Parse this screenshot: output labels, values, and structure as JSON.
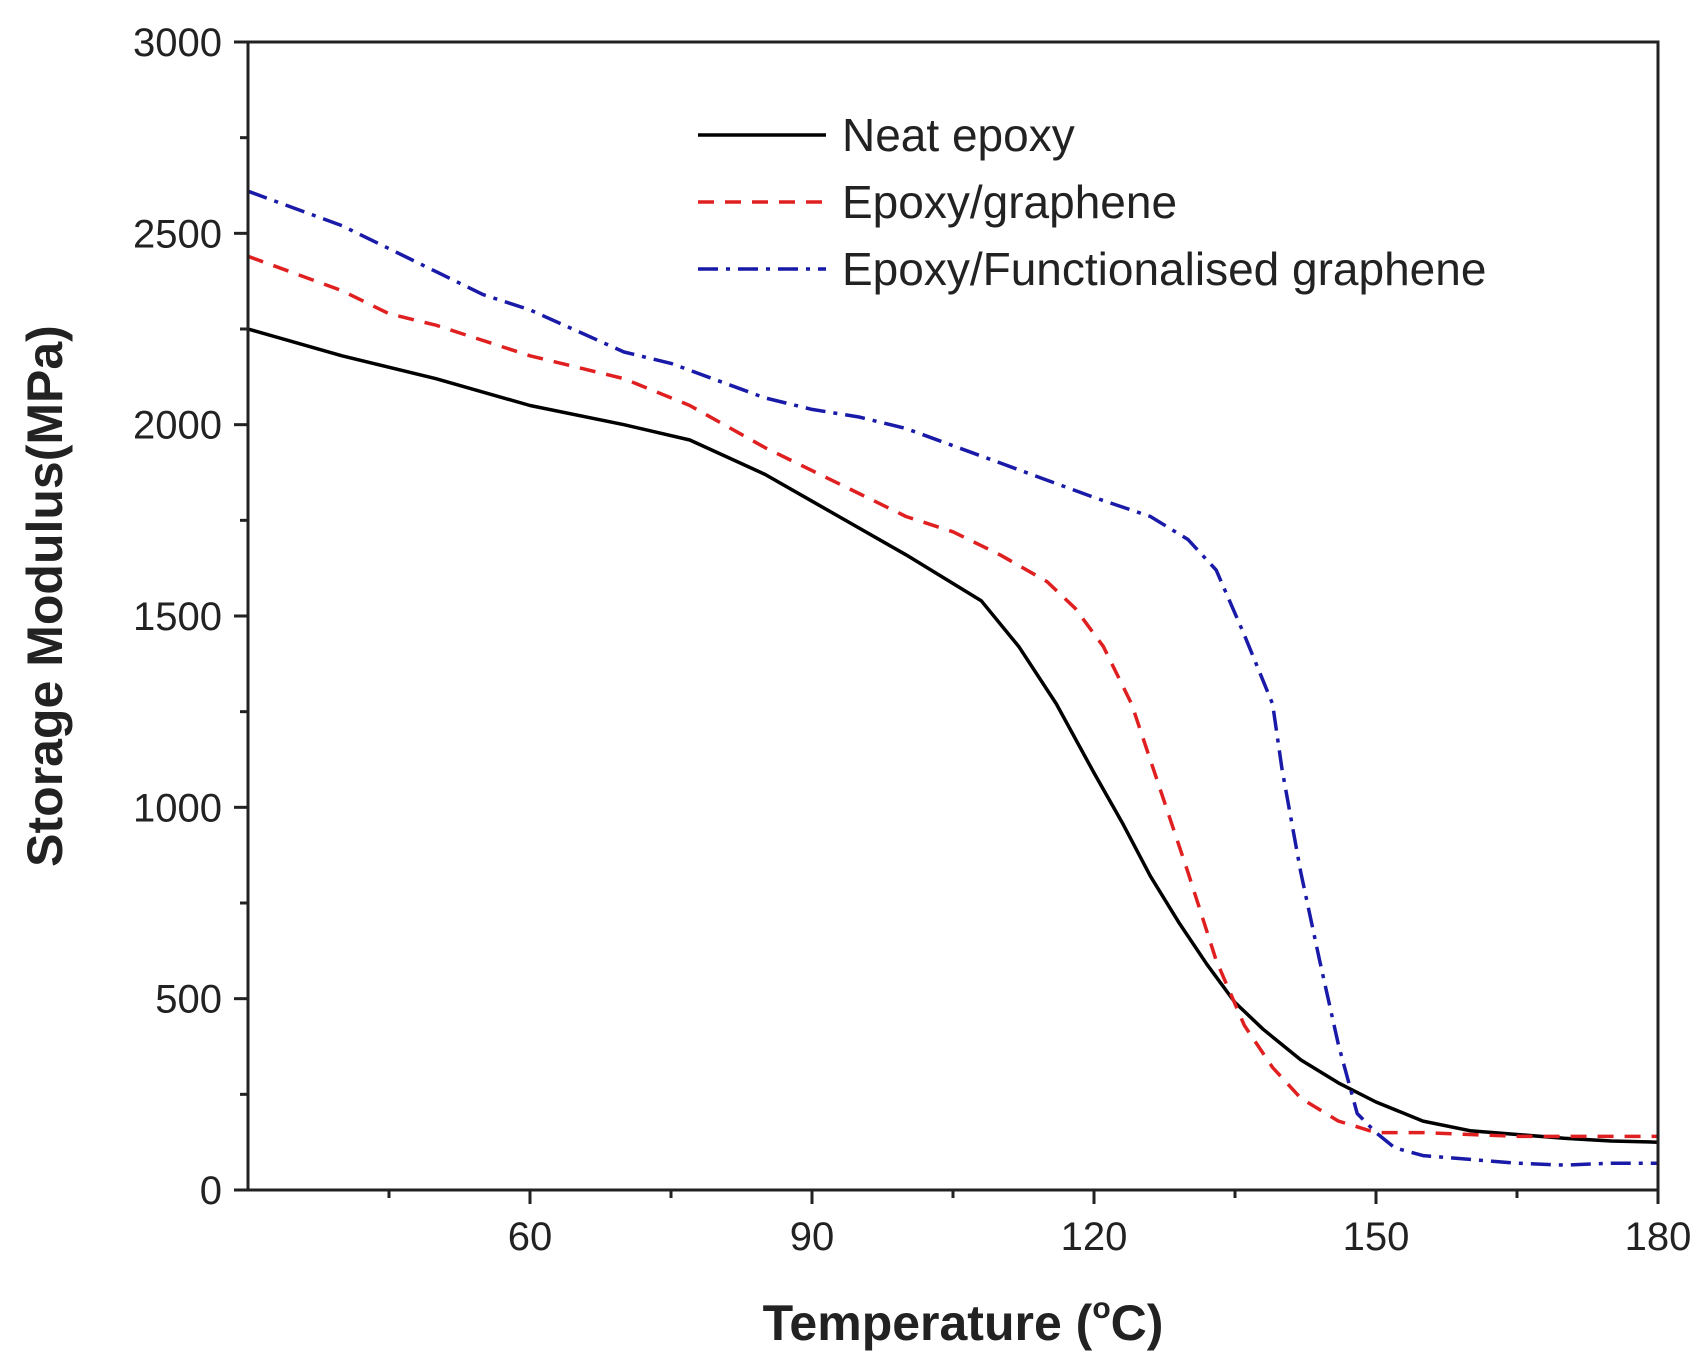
{
  "chart_data": {
    "type": "line",
    "title": "",
    "xlabel": "Temperature (",
    "xlabel_deg": "o",
    "xlabel_unit": "C)",
    "ylabel": "Storage Modulus(MPa)",
    "xlim": [
      30,
      180
    ],
    "ylim": [
      0,
      3000
    ],
    "xticks": [
      60,
      90,
      120,
      150,
      180
    ],
    "xtick_labels": [
      "60",
      "90",
      "120",
      "150",
      "180"
    ],
    "xminor_ticks": [
      45,
      75,
      105,
      135,
      165
    ],
    "yticks": [
      0,
      500,
      1000,
      1500,
      2000,
      2500,
      3000
    ],
    "ytick_labels": [
      "0",
      "500",
      "1000",
      "1500",
      "2000",
      "2500",
      "3000"
    ],
    "yminor_ticks": [
      250,
      750,
      1250,
      1750,
      2250,
      2750
    ],
    "grid": false,
    "legend_position": "top-right",
    "series": [
      {
        "name": "Neat epoxy",
        "color": "#000000",
        "dash": "solid",
        "x": [
          30,
          40,
          50,
          60,
          70,
          77,
          85,
          90,
          95,
          100,
          104,
          108,
          112,
          116,
          120,
          123,
          126,
          129,
          132,
          135,
          138,
          142,
          146,
          150,
          155,
          160,
          165,
          170,
          175,
          180
        ],
        "y": [
          2250,
          2180,
          2120,
          2050,
          2000,
          1960,
          1870,
          1800,
          1730,
          1660,
          1600,
          1540,
          1420,
          1270,
          1090,
          960,
          820,
          700,
          590,
          490,
          420,
          340,
          280,
          230,
          180,
          155,
          145,
          135,
          128,
          125
        ]
      },
      {
        "name": "Epoxy/graphene",
        "color": "#e02020",
        "dash": "dashed",
        "x": [
          30,
          40,
          45,
          50,
          60,
          70,
          77,
          85,
          90,
          95,
          100,
          105,
          110,
          115,
          118,
          121,
          124,
          127,
          130,
          133,
          136,
          139,
          142,
          146,
          150,
          155,
          160,
          165,
          170,
          175,
          180
        ],
        "y": [
          2440,
          2350,
          2290,
          2260,
          2180,
          2120,
          2050,
          1940,
          1880,
          1820,
          1760,
          1720,
          1660,
          1590,
          1520,
          1420,
          1270,
          1050,
          830,
          600,
          430,
          320,
          240,
          180,
          150,
          150,
          145,
          140,
          140,
          140,
          140
        ]
      },
      {
        "name": "Epoxy/Functionalised graphene",
        "color": "#1a1aa8",
        "dash": "dashdot",
        "x": [
          30,
          40,
          50,
          55,
          60,
          70,
          75,
          85,
          90,
          95,
          100,
          110,
          120,
          126,
          130,
          133,
          136,
          139,
          140,
          142,
          144,
          146,
          148,
          150,
          152,
          155,
          160,
          165,
          170,
          175,
          180
        ],
        "y": [
          2610,
          2520,
          2400,
          2340,
          2300,
          2190,
          2160,
          2070,
          2040,
          2020,
          1990,
          1900,
          1810,
          1760,
          1700,
          1620,
          1450,
          1270,
          1100,
          830,
          600,
          380,
          200,
          150,
          110,
          90,
          80,
          70,
          65,
          70,
          70
        ]
      }
    ]
  }
}
